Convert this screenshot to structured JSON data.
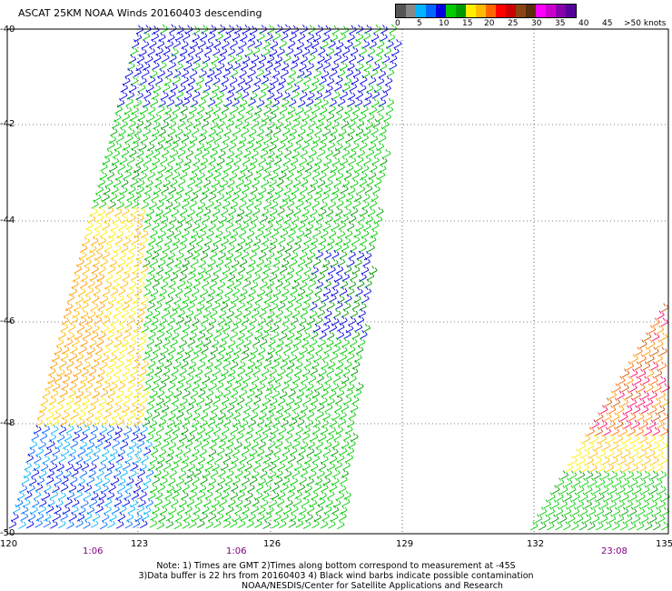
{
  "title": "ASCAT 25KM NOAA Winds 20160403 descending",
  "legend": {
    "colors": [
      "#555555",
      "#888888",
      "#00b4ff",
      "#0066ff",
      "#0000e0",
      "#00cc00",
      "#009900",
      "#ffee00",
      "#ffbb00",
      "#ff6600",
      "#ff0000",
      "#cc0000",
      "#8b4513",
      "#5a2d0c",
      "#ff00ff",
      "#cc00cc",
      "#8800aa",
      "#550099"
    ],
    "labels": [
      "0",
      "5",
      "10",
      "15",
      "20",
      "25",
      "30",
      "35",
      "40",
      "45",
      ">50 knots"
    ]
  },
  "axes": {
    "lat_labels": [
      "-40",
      "-42",
      "-44",
      "-46",
      "-48",
      "-50"
    ],
    "lon_labels": [
      "120",
      "123",
      "126",
      "129",
      "132",
      "135"
    ],
    "time_labels": [
      "1:06",
      "1:06",
      "23:08"
    ]
  },
  "notes": {
    "line1": "Note: 1) Times are GMT 2)Times along bottom correspond to measurement at -45S",
    "line2": "3)Data buffer is 22 hrs from 20160403 4) Black wind barbs indicate possible contamination",
    "line3": "NOAA/NESDIS/Center for Satellite Applications and Research"
  }
}
